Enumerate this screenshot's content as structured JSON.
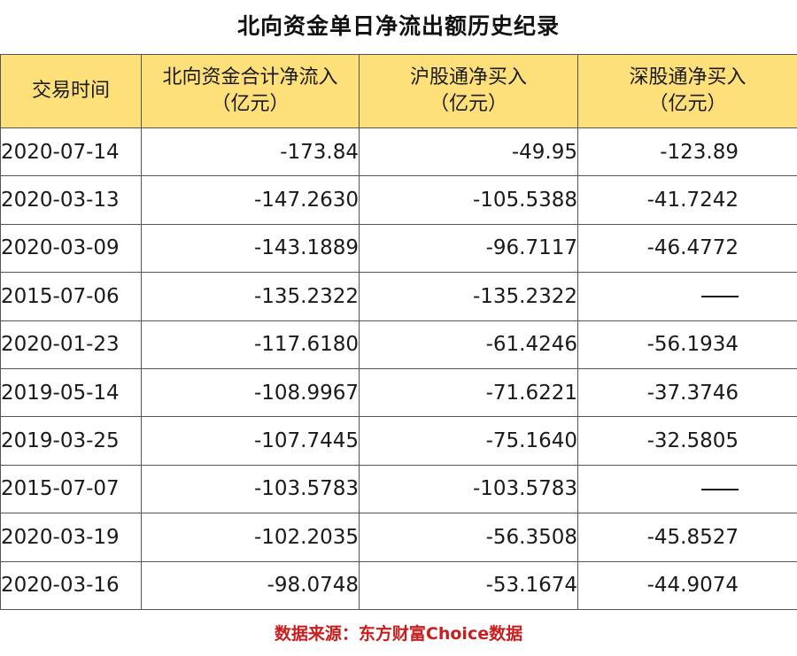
{
  "title": "北向资金单日净流出额历史纪录",
  "table": {
    "headers": [
      {
        "line1": "交易时间",
        "line2": ""
      },
      {
        "line1": "北向资金合计净流入",
        "line2": "（亿元）"
      },
      {
        "line1": "沪股通净买入",
        "line2": "（亿元）"
      },
      {
        "line1": "深股通净买入",
        "line2": "（亿元）"
      }
    ],
    "rows": [
      {
        "date": "2020-07-14",
        "total": "-173.84",
        "sh": "-49.95",
        "sz": "-123.89"
      },
      {
        "date": "2020-03-13",
        "total": "-147.2630",
        "sh": "-105.5388",
        "sz": "-41.7242"
      },
      {
        "date": "2020-03-09",
        "total": "-143.1889",
        "sh": "-96.7117",
        "sz": "-46.4772"
      },
      {
        "date": "2015-07-06",
        "total": "-135.2322",
        "sh": "-135.2322",
        "sz": ""
      },
      {
        "date": "2020-01-23",
        "total": "-117.6180",
        "sh": "-61.4246",
        "sz": "-56.1934"
      },
      {
        "date": "2019-05-14",
        "total": "-108.9967",
        "sh": "-71.6221",
        "sz": "-37.3746"
      },
      {
        "date": "2019-03-25",
        "total": "-107.7445",
        "sh": "-75.1640",
        "sz": "-32.5805"
      },
      {
        "date": "2015-07-07",
        "total": "-103.5783",
        "sh": "-103.5783",
        "sz": ""
      },
      {
        "date": "2020-03-19",
        "total": "-102.2035",
        "sh": "-56.3508",
        "sz": "-45.8527"
      },
      {
        "date": "2020-03-16",
        "total": "-98.0748",
        "sh": "-53.1674",
        "sz": "-44.9074"
      }
    ]
  },
  "source": "数据来源：东方财富Choice数据",
  "colors": {
    "header_bg": "#fde07a",
    "source_text": "#c81e1e",
    "border": "#555555"
  }
}
